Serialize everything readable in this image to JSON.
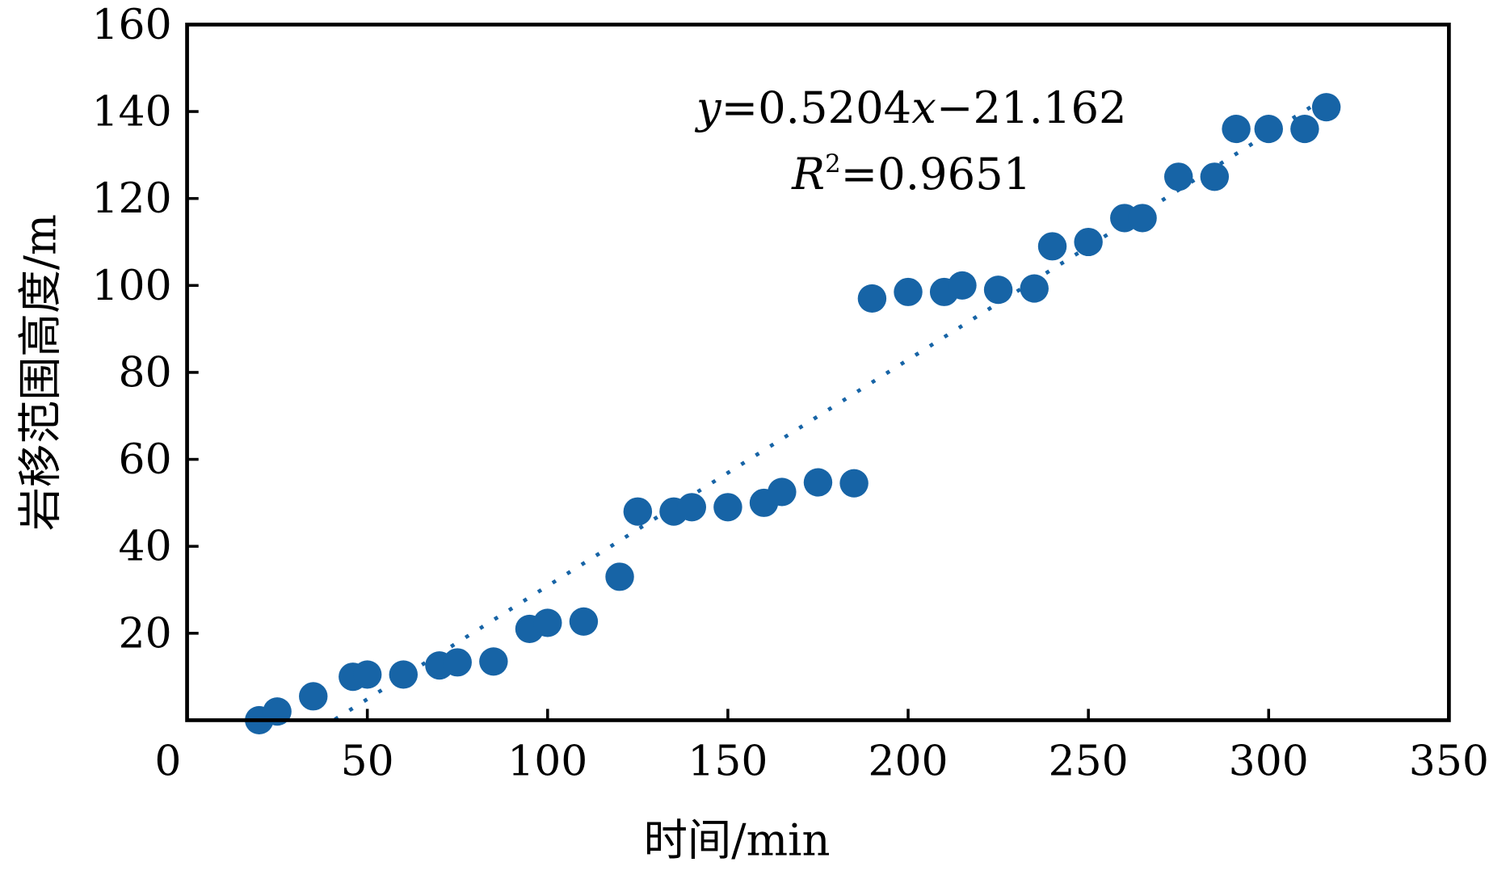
{
  "chart_data": {
    "type": "scatter",
    "title": "",
    "xlabel": "时间/min",
    "ylabel": "岩移范围高度/m",
    "xlim": [
      0,
      350
    ],
    "ylim": [
      0,
      160
    ],
    "xticks": [
      "0",
      "50",
      "100",
      "150",
      "200",
      "250",
      "300",
      "350"
    ],
    "yticks": [
      "20",
      "40",
      "60",
      "80",
      "100",
      "120",
      "140",
      "160"
    ],
    "grid": false,
    "marker_color": "#1764a6",
    "points": [
      [
        20,
        0
      ],
      [
        25,
        2
      ],
      [
        35,
        5.5
      ],
      [
        46,
        10
      ],
      [
        50,
        10.5
      ],
      [
        60,
        10.5
      ],
      [
        70,
        12.6
      ],
      [
        75,
        13.3
      ],
      [
        85,
        13.5
      ],
      [
        95,
        21
      ],
      [
        100,
        22.4
      ],
      [
        110,
        22.7
      ],
      [
        120,
        33
      ],
      [
        125,
        48
      ],
      [
        135,
        48
      ],
      [
        140,
        49
      ],
      [
        150,
        49
      ],
      [
        160,
        50
      ],
      [
        165,
        52.5
      ],
      [
        175,
        54.7
      ],
      [
        185,
        54.5
      ],
      [
        190,
        97
      ],
      [
        200,
        98.5
      ],
      [
        210,
        98.5
      ],
      [
        215,
        100
      ],
      [
        225,
        99
      ],
      [
        235,
        99.3
      ],
      [
        240,
        109
      ],
      [
        250,
        110
      ],
      [
        260,
        115.5
      ],
      [
        265,
        115.5
      ],
      [
        275,
        125
      ],
      [
        285,
        125
      ],
      [
        291,
        136
      ],
      [
        300,
        136
      ],
      [
        310,
        136
      ],
      [
        316,
        141
      ]
    ],
    "trendline": {
      "type": "linear",
      "slope": 0.5204,
      "intercept": -21.162,
      "style": "dotted",
      "x_range": [
        41,
        316
      ]
    },
    "annotations": {
      "equation_y": "y",
      "equation_rest": "=0.5204",
      "equation_x": "x",
      "equation_tail": "−21.162",
      "r2_R": "R",
      "r2_sup": "2",
      "r2_rest": "=0.9651"
    }
  }
}
